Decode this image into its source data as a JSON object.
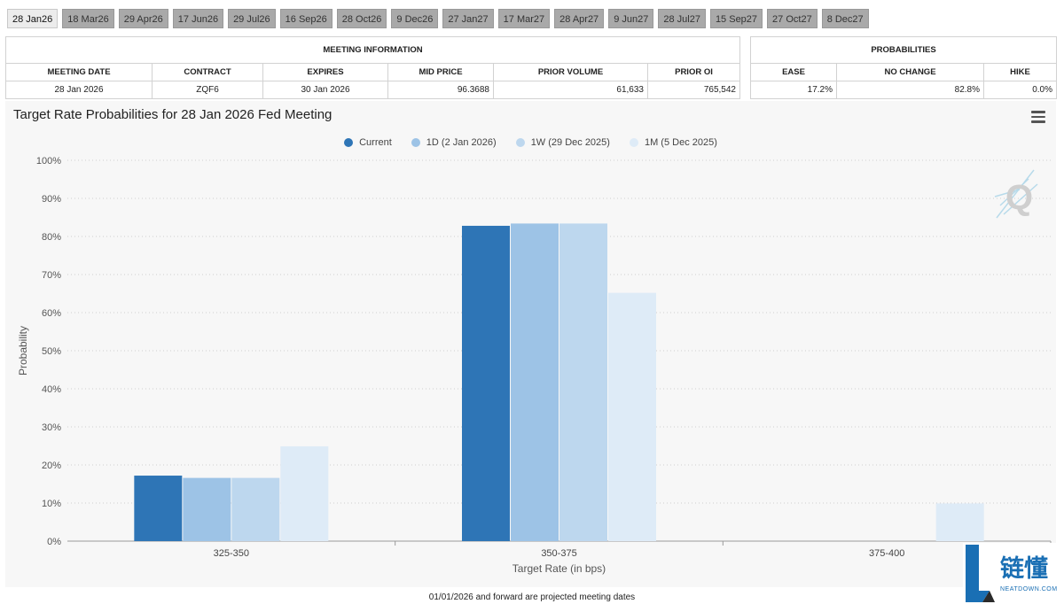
{
  "tabs": [
    "28 Jan26",
    "18 Mar26",
    "29 Apr26",
    "17 Jun26",
    "29 Jul26",
    "16 Sep26",
    "28 Oct26",
    "9 Dec26",
    "27 Jan27",
    "17 Mar27",
    "28 Apr27",
    "9 Jun27",
    "28 Jul27",
    "15 Sep27",
    "27 Oct27",
    "8 Dec27"
  ],
  "active_tab": 0,
  "meeting_info": {
    "header": "MEETING INFORMATION",
    "columns": [
      "MEETING DATE",
      "CONTRACT",
      "EXPIRES",
      "MID PRICE",
      "PRIOR VOLUME",
      "PRIOR OI"
    ],
    "row": [
      "28 Jan 2026",
      "ZQF6",
      "30 Jan 2026",
      "96.3688",
      "61,633",
      "765,542"
    ]
  },
  "probabilities": {
    "header": "PROBABILITIES",
    "columns": [
      "EASE",
      "NO CHANGE",
      "HIKE"
    ],
    "row": [
      "17.2%",
      "82.8%",
      "0.0%"
    ]
  },
  "chart_title": "Target Rate Probabilities for 28 Jan 2026 Fed Meeting",
  "footer": "01/01/2026 and forward are projected meeting dates",
  "brand": {
    "name": "链懂",
    "sub": "NEATDOWN.COM"
  },
  "watermark": "Q",
  "chart_data": {
    "type": "bar",
    "categories": [
      "325-350",
      "350-375",
      "375-400"
    ],
    "series": [
      {
        "name": "Current",
        "color": "#2e75b6",
        "values": [
          17.2,
          82.8,
          0
        ]
      },
      {
        "name": "1D (2 Jan 2026)",
        "color": "#9dc3e6",
        "values": [
          16.6,
          83.4,
          0
        ]
      },
      {
        "name": "1W (29 Dec 2025)",
        "color": "#bdd7ee",
        "values": [
          16.6,
          83.4,
          0
        ]
      },
      {
        "name": "1M (5 Dec 2025)",
        "color": "#deebf7",
        "values": [
          24.9,
          65.2,
          9.9
        ]
      }
    ],
    "xlabel": "Target Rate (in bps)",
    "ylabel": "Probability",
    "ylim": [
      0,
      100
    ],
    "yticks": [
      "0%",
      "10%",
      "20%",
      "30%",
      "40%",
      "50%",
      "60%",
      "70%",
      "80%",
      "90%",
      "100%"
    ],
    "grid": true,
    "legend_position": "top-center"
  }
}
